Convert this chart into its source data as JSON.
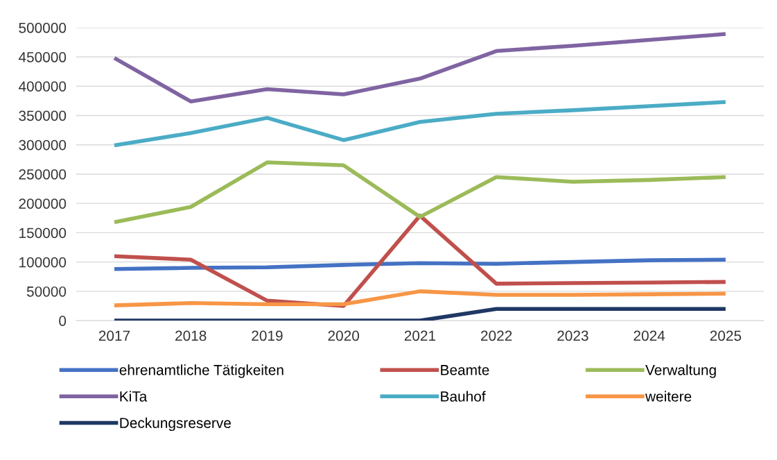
{
  "chart_data": {
    "type": "line",
    "categories": [
      "2017",
      "2018",
      "2019",
      "2020",
      "2021",
      "2022",
      "2023",
      "2024",
      "2025"
    ],
    "ylim": [
      0,
      500000
    ],
    "yticks": [
      0,
      50000,
      100000,
      150000,
      200000,
      250000,
      300000,
      350000,
      400000,
      450000,
      500000
    ],
    "grid": "y",
    "legend": "bottom",
    "marker": "none",
    "line_style": "solid",
    "series": [
      {
        "name": "ehrenamtliche Tätigkeiten",
        "color": "#4472c4",
        "values": [
          88000,
          90000,
          91000,
          95000,
          98000,
          97000,
          100000,
          103000,
          104000
        ]
      },
      {
        "name": "Beamte",
        "color": "#c0504d",
        "values": [
          110000,
          104000,
          34000,
          25000,
          179000,
          63000,
          64000,
          65000,
          66000
        ]
      },
      {
        "name": "Verwaltung",
        "color": "#9bbb59",
        "values": [
          168000,
          194000,
          270000,
          265000,
          177000,
          245000,
          237000,
          240000,
          245000
        ]
      },
      {
        "name": "KiTa",
        "color": "#8064a2",
        "values": [
          448000,
          374000,
          395000,
          386000,
          413000,
          460000,
          469000,
          479000,
          489000
        ]
      },
      {
        "name": "Bauhof",
        "color": "#4bacc6",
        "values": [
          299000,
          320000,
          346000,
          308000,
          339000,
          353000,
          359000,
          366000,
          373000
        ]
      },
      {
        "name": "weitere",
        "color": "#f79646",
        "values": [
          26000,
          30000,
          28000,
          28000,
          50000,
          44000,
          44000,
          45000,
          46000
        ]
      },
      {
        "name": "Deckungsreserve",
        "color": "#1f3864",
        "values": [
          0,
          0,
          0,
          0,
          0,
          20000,
          20000,
          20000,
          20000
        ]
      }
    ]
  }
}
